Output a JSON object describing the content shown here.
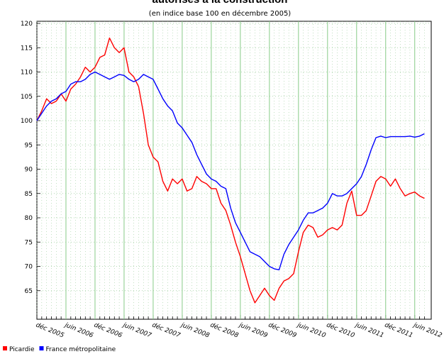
{
  "chart_data": {
    "type": "line",
    "title": "autorisés à la construction",
    "subtitle": "(en indice base 100 en décembre 2005)",
    "categories": [
      "déc 2005",
      null,
      null,
      null,
      null,
      null,
      "juin 2006",
      null,
      null,
      null,
      null,
      null,
      "déc 2006",
      null,
      null,
      null,
      null,
      null,
      "juin 2007",
      null,
      null,
      null,
      null,
      null,
      "déc 2007",
      null,
      null,
      null,
      null,
      null,
      "juin 2008",
      null,
      null,
      null,
      null,
      null,
      "déc 2008",
      null,
      null,
      null,
      null,
      null,
      "juin 2009",
      null,
      null,
      null,
      null,
      null,
      "déc 2009",
      null,
      null,
      null,
      null,
      null,
      "juin 2010",
      null,
      null,
      null,
      null,
      null,
      "déc 2010",
      null,
      null,
      null,
      null,
      null,
      "juin 2011",
      null,
      null,
      null,
      null,
      null,
      "déc 2011",
      null,
      null,
      null,
      null,
      null,
      "juin 2012",
      null,
      null
    ],
    "series": [
      {
        "name": "Picardie",
        "color": "#ff0000",
        "values": [
          100,
          102,
          104.5,
          103.5,
          104,
          105.5,
          104,
          106.5,
          107.5,
          109,
          111,
          110,
          111,
          113,
          113.5,
          117,
          115,
          114,
          115,
          110,
          109,
          107,
          101.5,
          95,
          92.5,
          91.5,
          87.5,
          85.5,
          88,
          87,
          88,
          85.5,
          86,
          88.5,
          87.5,
          87,
          86,
          86,
          83,
          81.5,
          78.5,
          75,
          72,
          68.5,
          65,
          62.5,
          64,
          65.5,
          64,
          63,
          65.5,
          67,
          67.5,
          68.5,
          73,
          77,
          78.5,
          78,
          76,
          76.5,
          77.5,
          78,
          77.5,
          78.5,
          83,
          85.5,
          80.5,
          80.5,
          81.5,
          84.5,
          87.5,
          88.5,
          88,
          86.5,
          88,
          86,
          84.5,
          85,
          85.3,
          84.5,
          84
        ]
      },
      {
        "name": "France métropolitaine",
        "color": "#0000ff",
        "values": [
          100,
          101.5,
          103,
          104,
          104.5,
          105.5,
          106,
          107.5,
          108,
          108,
          108.5,
          109.5,
          110,
          109.5,
          109,
          108.5,
          109,
          109.5,
          109.3,
          108.5,
          108,
          108.5,
          109.5,
          109,
          108.5,
          106.5,
          104.5,
          103,
          102,
          99.5,
          98.5,
          97,
          95.5,
          93,
          91,
          89,
          88,
          87.5,
          86.5,
          86,
          82,
          79,
          77,
          75,
          73,
          72.5,
          72,
          71,
          70,
          69.5,
          69.3,
          72.5,
          74.5,
          76,
          77.5,
          79.5,
          81,
          81,
          81.5,
          82,
          83,
          85,
          84.5,
          84.5,
          85,
          86,
          87,
          88.5,
          91,
          94,
          96.5,
          96.8,
          96.5,
          96.7,
          96.7,
          96.7,
          96.7,
          96.8,
          96.6,
          96.8,
          97.3
        ]
      }
    ],
    "ylim": [
      60,
      120
    ],
    "yticks": [
      65,
      70,
      75,
      80,
      85,
      90,
      95,
      100,
      105,
      110,
      115,
      120
    ],
    "grid": true,
    "legend": "bottom-left"
  }
}
